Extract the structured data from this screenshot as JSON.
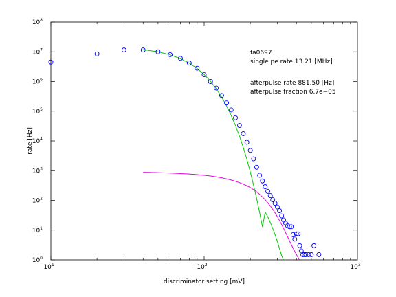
{
  "chart_data": {
    "type": "scatter",
    "x_scale": "log",
    "y_scale": "log",
    "xlim": [
      10,
      1000
    ],
    "ylim": [
      1,
      100000000
    ],
    "xlabel": "discriminator setting [mV]",
    "ylabel": "rate [Hz]",
    "grid": false,
    "x_ticks": [
      {
        "base": "10",
        "exp": "1",
        "value": 10
      },
      {
        "base": "10",
        "exp": "2",
        "value": 100
      },
      {
        "base": "10",
        "exp": "3",
        "value": 1000
      }
    ],
    "y_ticks": [
      {
        "base": "10",
        "exp": "0",
        "value": 1
      },
      {
        "base": "10",
        "exp": "1",
        "value": 10
      },
      {
        "base": "10",
        "exp": "2",
        "value": 100
      },
      {
        "base": "10",
        "exp": "3",
        "value": 1000
      },
      {
        "base": "10",
        "exp": "4",
        "value": 10000
      },
      {
        "base": "10",
        "exp": "5",
        "value": 100000
      },
      {
        "base": "10",
        "exp": "6",
        "value": 1000000
      },
      {
        "base": "10",
        "exp": "7",
        "value": 10000000
      },
      {
        "base": "10",
        "exp": "8",
        "value": 100000000
      }
    ],
    "annotations": [
      "fa0697",
      "single pe rate 13.21 [MHz]",
      "afterpulse rate 881.50 [Hz]",
      "afterpulse fraction 6.7e−05"
    ],
    "series": [
      {
        "kind": "points",
        "marker": "circle",
        "color": "#0000ff",
        "x": [
          10,
          20,
          30,
          40,
          50,
          60,
          70,
          80,
          90,
          100,
          110,
          120,
          130,
          140,
          150,
          160,
          170,
          180,
          190,
          200,
          210,
          220,
          230,
          240,
          250,
          260,
          270,
          280,
          290,
          300,
          310,
          320,
          330,
          340,
          350,
          360,
          370,
          380,
          390,
          400,
          410,
          420,
          430,
          440,
          450,
          460,
          480,
          500,
          520,
          560
        ],
        "y": [
          4500000,
          8500000,
          11500000,
          11500000,
          10000000,
          8000000,
          6000000,
          4200000,
          2800000,
          1700000,
          1000000,
          600000,
          340000,
          190000,
          110000,
          60000,
          33000,
          17500,
          9000,
          4800,
          2500,
          1300,
          700,
          450,
          290,
          200,
          145,
          105,
          80,
          60,
          45,
          30,
          22,
          17,
          14,
          13,
          13,
          7,
          5,
          7.5,
          7.5,
          3,
          2,
          1.5,
          1.5,
          1.5,
          1.5,
          1.5,
          3,
          1.5
        ]
      },
      {
        "kind": "line",
        "color": "#00c800",
        "x": [
          40,
          50,
          60,
          70,
          80,
          90,
          100,
          110,
          120,
          130,
          140,
          150,
          160,
          170,
          180,
          190,
          200,
          210,
          220,
          230,
          240,
          250,
          260,
          270,
          280,
          290,
          300,
          310,
          320,
          330,
          338
        ],
        "y": [
          11800000,
          10000000,
          7900000,
          5900000,
          4150000,
          2750000,
          1720000,
          1020000,
          570000,
          300000,
          150000,
          72000,
          33000,
          14500,
          6000,
          2380,
          900,
          327,
          115,
          39,
          12.8,
          40,
          28,
          18,
          11.5,
          7,
          4.2,
          2.4,
          1.4,
          1.0,
          0.5
        ]
      },
      {
        "kind": "line",
        "color": "#e000e0",
        "x": [
          40,
          50,
          60,
          70,
          80,
          90,
          100,
          110,
          120,
          130,
          140,
          150,
          160,
          170,
          180,
          190,
          200,
          210,
          220,
          230,
          240,
          250,
          260,
          270,
          280,
          290,
          300,
          310,
          320,
          330,
          340,
          350,
          360,
          370,
          380,
          390,
          400,
          410,
          420,
          430,
          440
        ],
        "y": [
          880,
          860,
          830,
          800,
          770,
          735,
          700,
          660,
          620,
          575,
          530,
          485,
          440,
          395,
          350,
          310,
          270,
          230,
          195,
          160,
          130,
          105,
          83,
          65,
          50,
          38,
          28.5,
          21,
          15.5,
          11.3,
          8.2,
          6.0,
          4.4,
          3.3,
          2.5,
          1.9,
          1.5,
          1.2,
          1.0,
          0.85,
          0.7
        ]
      }
    ]
  }
}
